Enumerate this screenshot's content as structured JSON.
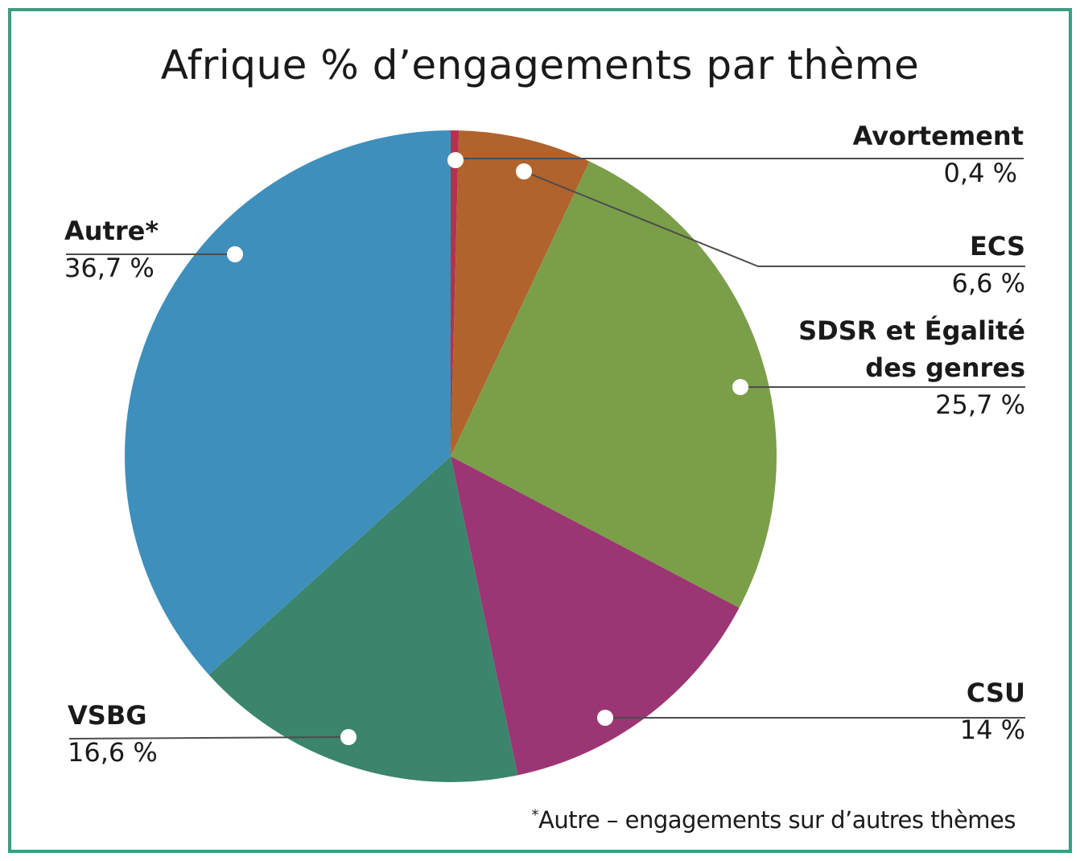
{
  "title": "Afrique % d’engagements par thème",
  "footnote": {
    "marker": "*",
    "text": "Autre – engagements sur d’autres thèmes"
  },
  "colors": {
    "frame": "#3f9b82",
    "leader_line": "#4d4d4d",
    "dot": "#ffffff"
  },
  "chart_data": {
    "type": "pie",
    "title": "Afrique % d’engagements par thème",
    "start": "12 o'clock",
    "direction": "clockwise",
    "slices": [
      {
        "name": "Avortement",
        "value": 0.4,
        "label": "0,4 %",
        "color": "#b9304f"
      },
      {
        "name": "ECS",
        "value": 6.6,
        "label": "6,6 %",
        "color": "#b0632c"
      },
      {
        "name": "SDSR et Égalité des genres",
        "value": 25.7,
        "label": "25,7 %",
        "color": "#7b9e49"
      },
      {
        "name": "CSU",
        "value": 14,
        "label": "14 %",
        "color": "#9c3573"
      },
      {
        "name": "VSBG",
        "value": 16.6,
        "label": "16,6 %",
        "color": "#3a856c"
      },
      {
        "name": "Autre*",
        "value": 36.7,
        "label": "36,7 %",
        "color": "#3f8fbc"
      }
    ]
  }
}
